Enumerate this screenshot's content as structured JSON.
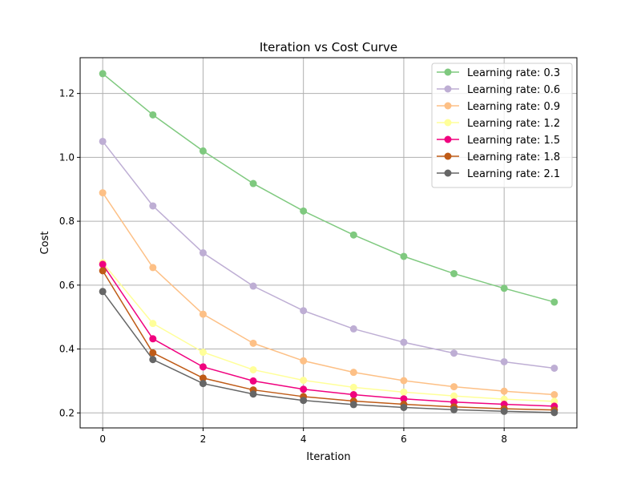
{
  "chart_data": {
    "type": "line",
    "title": "Iteration vs Cost Curve",
    "xlabel": "Iteration",
    "ylabel": "Cost",
    "x": [
      0,
      1,
      2,
      3,
      4,
      5,
      6,
      7,
      8,
      9
    ],
    "xlim": [
      -0.45,
      9.45
    ],
    "ylim": [
      0.153,
      1.312
    ],
    "xticks": [
      0,
      2,
      4,
      6,
      8
    ],
    "xtick_labels": [
      "0",
      "2",
      "4",
      "6",
      "8"
    ],
    "yticks": [
      0.2,
      0.4,
      0.6,
      0.8,
      1.0,
      1.2
    ],
    "ytick_labels": [
      "0.2",
      "0.4",
      "0.6",
      "0.8",
      "1.0",
      "1.2"
    ],
    "grid": true,
    "legend_position": "upper right",
    "marker": "circle",
    "series": [
      {
        "name": "Learning rate: 0.3",
        "color": "#7fc97f",
        "values": [
          1.262,
          1.133,
          1.02,
          0.918,
          0.832,
          0.757,
          0.69,
          0.636,
          0.59,
          0.547
        ]
      },
      {
        "name": "Learning rate: 0.6",
        "color": "#beaed4",
        "values": [
          1.05,
          0.848,
          0.701,
          0.597,
          0.52,
          0.463,
          0.421,
          0.387,
          0.36,
          0.34
        ]
      },
      {
        "name": "Learning rate: 0.9",
        "color": "#fdc086",
        "values": [
          0.889,
          0.655,
          0.509,
          0.418,
          0.363,
          0.327,
          0.301,
          0.282,
          0.268,
          0.257
        ]
      },
      {
        "name": "Learning rate: 1.2",
        "color": "#ffff99",
        "values": [
          0.67,
          0.48,
          0.39,
          0.335,
          0.302,
          0.28,
          0.265,
          0.253,
          0.243,
          0.236
        ]
      },
      {
        "name": "Learning rate: 1.5",
        "color": "#f0027f",
        "values": [
          0.665,
          0.432,
          0.344,
          0.3,
          0.274,
          0.257,
          0.244,
          0.234,
          0.227,
          0.221
        ]
      },
      {
        "name": "Learning rate: 1.8",
        "color": "#bf5b17",
        "values": [
          0.645,
          0.388,
          0.309,
          0.272,
          0.251,
          0.237,
          0.227,
          0.219,
          0.213,
          0.209
        ]
      },
      {
        "name": "Learning rate: 2.1",
        "color": "#666666",
        "values": [
          0.58,
          0.367,
          0.292,
          0.259,
          0.239,
          0.226,
          0.217,
          0.21,
          0.205,
          0.201
        ]
      }
    ]
  }
}
